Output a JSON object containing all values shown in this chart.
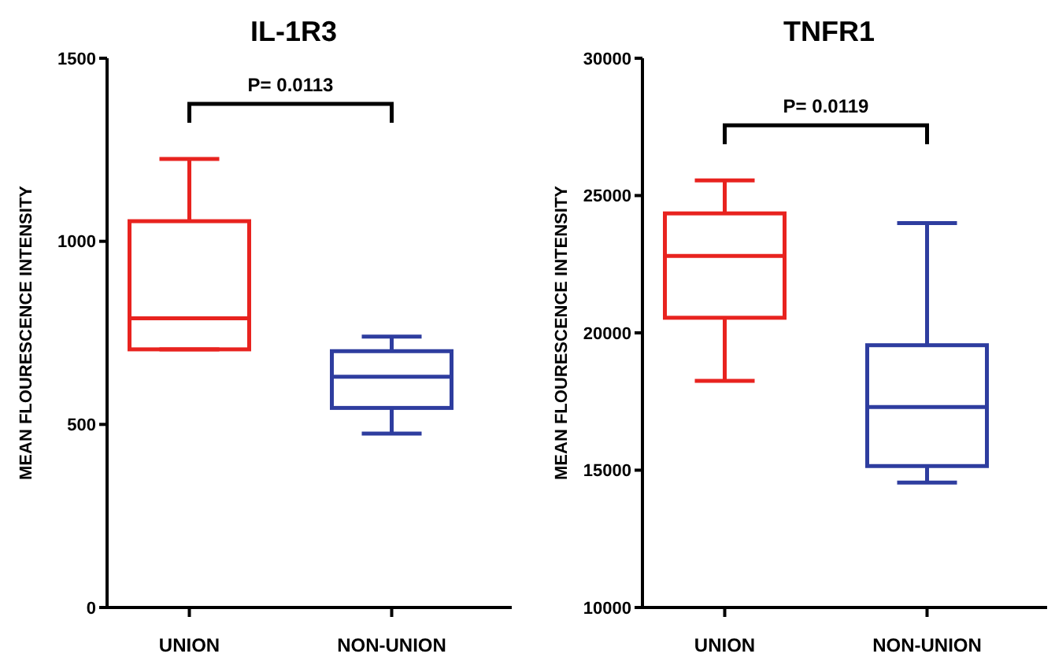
{
  "chart_data": [
    {
      "type": "box",
      "title": "IL-1R3",
      "ylabel": "MEAN FLOURESCENCE INTENSITY",
      "categories": [
        "UNION",
        "NON-UNION"
      ],
      "colors": [
        "#e8231f",
        "#2e3d9f"
      ],
      "ylim": [
        0,
        1500
      ],
      "yticks": [
        0,
        500,
        1000,
        1500
      ],
      "annotations": [
        "P= 0.0113"
      ],
      "boxes": [
        {
          "low": 705,
          "q1": 705,
          "median": 790,
          "q3": 1055,
          "high": 1225
        },
        {
          "low": 475,
          "q1": 545,
          "median": 630,
          "q3": 700,
          "high": 740
        }
      ]
    },
    {
      "type": "box",
      "title": "TNFR1",
      "ylabel": "MEAN FLOURESCENCE INTENSITY",
      "categories": [
        "UNION",
        "NON-UNION"
      ],
      "colors": [
        "#e8231f",
        "#2e3d9f"
      ],
      "ylim": [
        10000,
        30000
      ],
      "yticks": [
        10000,
        15000,
        20000,
        25000,
        30000
      ],
      "annotations": [
        "P= 0.0119"
      ],
      "boxes": [
        {
          "low": 18250,
          "q1": 20550,
          "median": 22800,
          "q3": 24350,
          "high": 25550
        },
        {
          "low": 14550,
          "q1": 15150,
          "median": 17300,
          "q3": 19550,
          "high": 24000
        }
      ]
    }
  ]
}
